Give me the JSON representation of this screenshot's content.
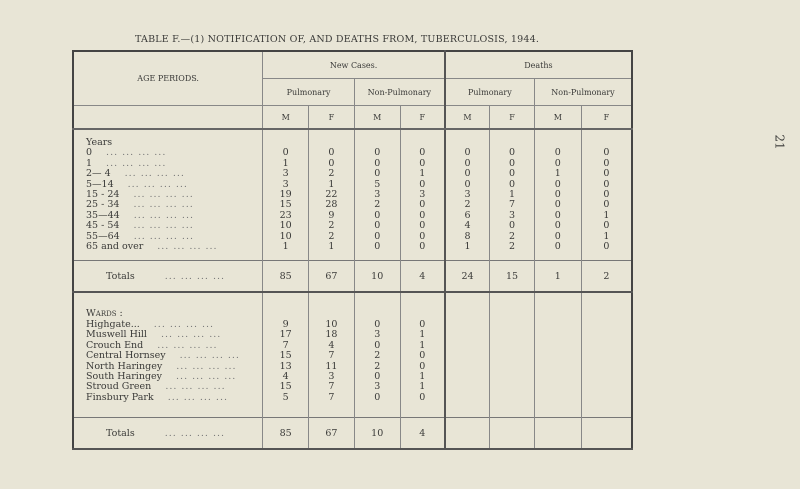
{
  "title": "TABLE F.—(1) NOTIFICATION OF, AND DEATHS FROM, TUBERCULOSIS, 1944.",
  "page_number": "21",
  "header": {
    "age_periods": "AGE PERIODS.",
    "new_cases": "New Cases.",
    "deaths": "Deaths",
    "pulmonary": "Pulmonary",
    "non_pulmonary": "Non-Pulmonary",
    "m": "M",
    "f": "F"
  },
  "years_label": "Years",
  "age_rows": [
    {
      "label": "0",
      "v": [
        "0",
        "0",
        "0",
        "0",
        "0",
        "0",
        "0",
        "0"
      ]
    },
    {
      "label": "1",
      "v": [
        "1",
        "0",
        "0",
        "0",
        "0",
        "0",
        "0",
        "0"
      ]
    },
    {
      "label": "2— 4",
      "v": [
        "3",
        "2",
        "0",
        "1",
        "0",
        "0",
        "1",
        "0"
      ]
    },
    {
      "label": "5—14",
      "v": [
        "3",
        "1",
        "5",
        "0",
        "0",
        "0",
        "0",
        "0"
      ]
    },
    {
      "label": "15 - 24",
      "v": [
        "19",
        "22",
        "3",
        "3",
        "3",
        "1",
        "0",
        "0"
      ]
    },
    {
      "label": "25 - 34",
      "v": [
        "15",
        "28",
        "2",
        "0",
        "2",
        "7",
        "0",
        "0"
      ]
    },
    {
      "label": "35—44",
      "v": [
        "23",
        "9",
        "0",
        "0",
        "6",
        "3",
        "0",
        "1"
      ]
    },
    {
      "label": "45 - 54",
      "v": [
        "10",
        "2",
        "0",
        "0",
        "4",
        "0",
        "0",
        "0"
      ]
    },
    {
      "label": "55—64",
      "v": [
        "10",
        "2",
        "0",
        "0",
        "8",
        "2",
        "0",
        "1"
      ]
    },
    {
      "label": "65 and over",
      "v": [
        "1",
        "1",
        "0",
        "0",
        "1",
        "2",
        "0",
        "0"
      ]
    }
  ],
  "age_totals": {
    "label": "Totals",
    "v": [
      "85",
      "67",
      "10",
      "4",
      "24",
      "15",
      "1",
      "2"
    ]
  },
  "wards_label": "Wards :",
  "ward_rows": [
    {
      "label": "Highgate...",
      "v": [
        "9",
        "10",
        "0",
        "0"
      ]
    },
    {
      "label": "Muswell Hill",
      "v": [
        "17",
        "18",
        "3",
        "1"
      ]
    },
    {
      "label": "Crouch End",
      "v": [
        "7",
        "4",
        "0",
        "1"
      ]
    },
    {
      "label": "Central Hornsey",
      "v": [
        "15",
        "7",
        "2",
        "0"
      ]
    },
    {
      "label": "North Haringey",
      "v": [
        "13",
        "11",
        "2",
        "0"
      ]
    },
    {
      "label": "South Haringey",
      "v": [
        "4",
        "3",
        "0",
        "1"
      ]
    },
    {
      "label": "Stroud Green",
      "v": [
        "15",
        "7",
        "3",
        "1"
      ]
    },
    {
      "label": "Finsbury Park",
      "v": [
        "5",
        "7",
        "0",
        "0"
      ]
    }
  ],
  "ward_totals": {
    "label": "Totals",
    "v": [
      "85",
      "67",
      "10",
      "4"
    ]
  },
  "dots": "...  ...  ...  ..."
}
